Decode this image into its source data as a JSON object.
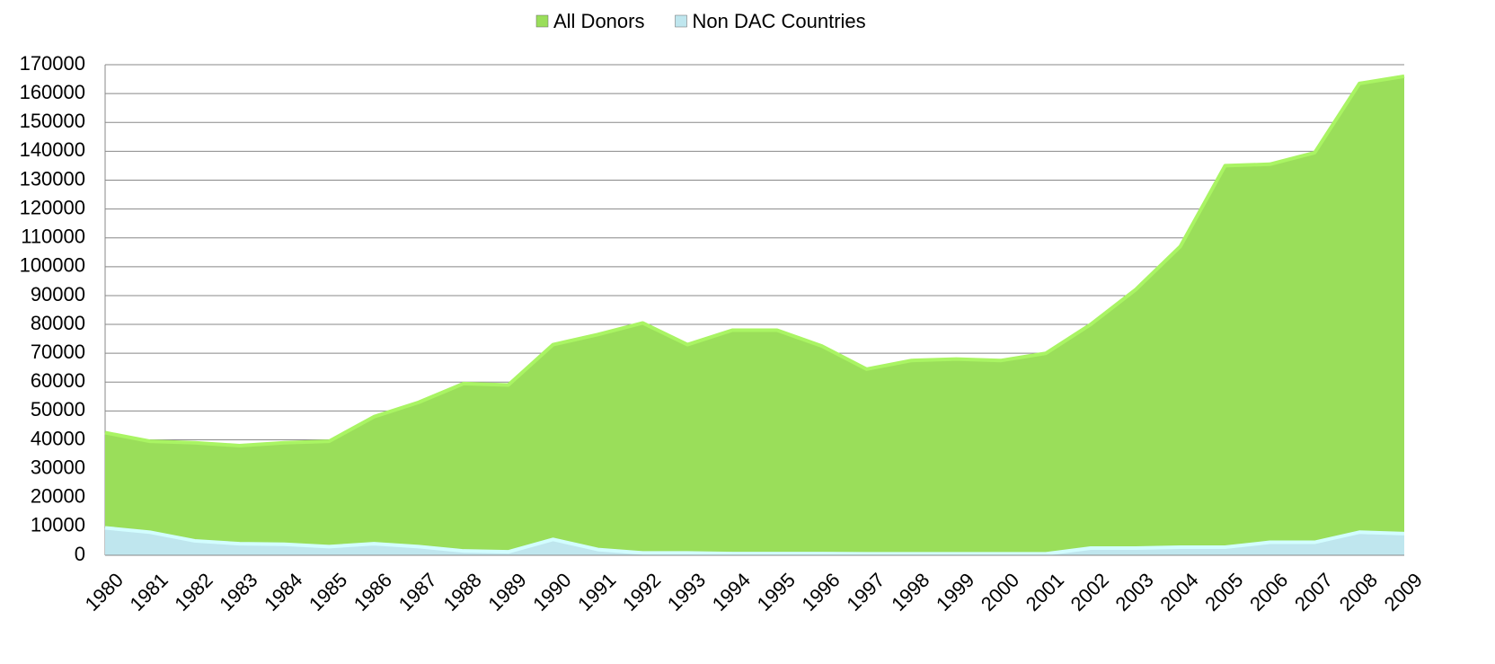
{
  "chart_data": {
    "type": "area",
    "categories": [
      "1980",
      "1981",
      "1982",
      "1983",
      "1984",
      "1985",
      "1986",
      "1987",
      "1988",
      "1989",
      "1990",
      "1991",
      "1992",
      "1993",
      "1994",
      "1995",
      "1996",
      "1997",
      "1998",
      "1999",
      "2000",
      "2001",
      "2002",
      "2003",
      "2004",
      "2005",
      "2006",
      "2007",
      "2008",
      "2009"
    ],
    "series": [
      {
        "name": "All Donors",
        "color": "#9ade5a",
        "values": [
          42500,
          39500,
          39000,
          38000,
          39000,
          39500,
          48000,
          53000,
          59500,
          59000,
          73000,
          76500,
          80500,
          73000,
          78000,
          78000,
          72500,
          64500,
          67500,
          68000,
          67500,
          70000,
          80000,
          92000,
          107000,
          135000,
          135500,
          139500,
          163500,
          166000
        ]
      },
      {
        "name": "Non DAC Countries",
        "color": "#bfe6ee",
        "values": [
          9500,
          8000,
          5000,
          4000,
          3800,
          3000,
          4000,
          3000,
          1500,
          1200,
          5500,
          2000,
          800,
          800,
          600,
          600,
          600,
          500,
          500,
          500,
          500,
          500,
          2500,
          2500,
          2800,
          2800,
          4500,
          4500,
          8000,
          7500
        ]
      }
    ],
    "ylim": [
      0,
      170000
    ],
    "yticks": [
      0,
      10000,
      20000,
      30000,
      40000,
      50000,
      60000,
      70000,
      80000,
      90000,
      100000,
      110000,
      120000,
      130000,
      140000,
      150000,
      160000,
      170000
    ],
    "grid": true,
    "legend": "top"
  }
}
